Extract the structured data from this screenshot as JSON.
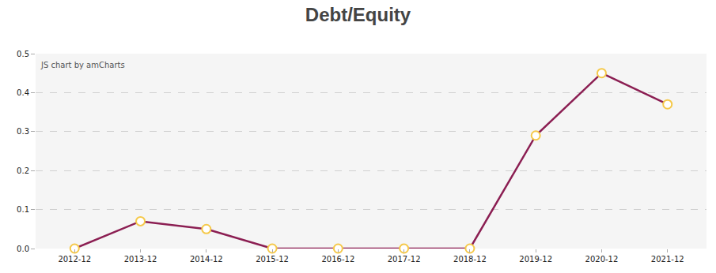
{
  "chart_data": {
    "type": "line",
    "title": "Debt/Equity",
    "categories": [
      "2012-12",
      "2013-12",
      "2014-12",
      "2015-12",
      "2016-12",
      "2017-12",
      "2018-12",
      "2019-12",
      "2020-12",
      "2021-12"
    ],
    "values": [
      0,
      0.07,
      0.05,
      0,
      0,
      0,
      0,
      0.29,
      0.45,
      0.37
    ],
    "color": "#8b1e52",
    "marker": "circle",
    "ylim": [
      0,
      0.5
    ],
    "yticks": [
      {
        "value": 0,
        "label": "0.0"
      },
      0.1,
      0.2,
      0.3,
      0.4,
      0.5
    ],
    "grid": true,
    "annotations": [
      {
        "text": "JS chart by amCharts"
      }
    ]
  }
}
